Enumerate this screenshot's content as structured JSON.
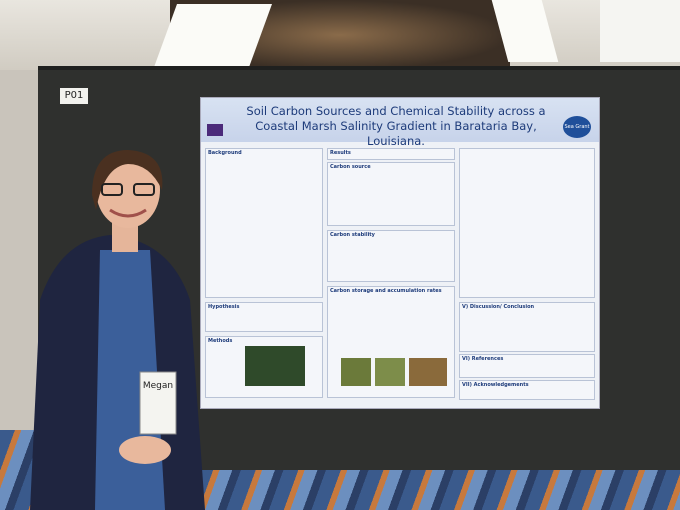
{
  "board_label": "P01",
  "poster": {
    "title": "Soil Carbon Sources and Chemical Stability across a Coastal Marsh Salinity Gradient in Barataria Bay, Louisiana.",
    "logo": "Sea Grant",
    "sections": [
      "Background",
      "Results",
      "Carbon source",
      "Carbon stability",
      "Carbon storage and accumulation rates",
      "Hypothesis",
      "Methods",
      "V) Discussion/ Conclusion",
      "VI) References",
      "VII) Acknowledgements"
    ]
  },
  "badge": {
    "name": "Megan"
  }
}
